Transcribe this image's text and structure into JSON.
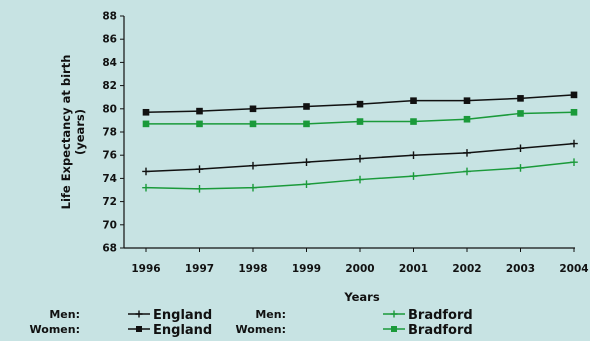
{
  "chart_data": {
    "type": "line",
    "ylabel": "Life Expectancy at birth (years)",
    "ylabel_lines": [
      "Life Expectancy at birth",
      "(years)"
    ],
    "xlabel": "Years",
    "x": [
      "1996",
      "1997",
      "1998",
      "1999",
      "2000",
      "2001",
      "2002",
      "2003",
      "2004"
    ],
    "ylim": [
      68,
      88
    ],
    "yticks": [
      68,
      70,
      72,
      74,
      76,
      78,
      80,
      82,
      84,
      86,
      88
    ],
    "grid": false,
    "legend_position": "bottom",
    "series": [
      {
        "group": "Women:",
        "name": "England",
        "color": "#111111",
        "marker": "square",
        "values": [
          79.7,
          79.8,
          80.0,
          80.2,
          80.4,
          80.7,
          80.7,
          80.9,
          81.2
        ]
      },
      {
        "group": "Women:",
        "name": "Bradford",
        "color": "#1a9a3a",
        "marker": "square",
        "values": [
          78.7,
          78.7,
          78.7,
          78.7,
          78.9,
          78.9,
          79.1,
          79.6,
          79.7
        ]
      },
      {
        "group": "Men:",
        "name": "England",
        "color": "#111111",
        "marker": "plus",
        "values": [
          74.6,
          74.8,
          75.1,
          75.4,
          75.7,
          76.0,
          76.2,
          76.6,
          77.0
        ]
      },
      {
        "group": "Men:",
        "name": "Bradford",
        "color": "#1a9a3a",
        "marker": "plus",
        "values": [
          73.2,
          73.1,
          73.2,
          73.5,
          73.9,
          74.2,
          74.6,
          74.9,
          75.4
        ]
      }
    ]
  },
  "legend": [
    {
      "label": "Men:",
      "series": "England",
      "color": "#111111",
      "marker": "plus"
    },
    {
      "label": "Women:",
      "series": "England",
      "color": "#111111",
      "marker": "square"
    },
    {
      "label": "Men:",
      "series": "Bradford",
      "color": "#1a9a3a",
      "marker": "plus"
    },
    {
      "label": "Women:",
      "series": "Bradford",
      "color": "#1a9a3a",
      "marker": "square"
    }
  ]
}
